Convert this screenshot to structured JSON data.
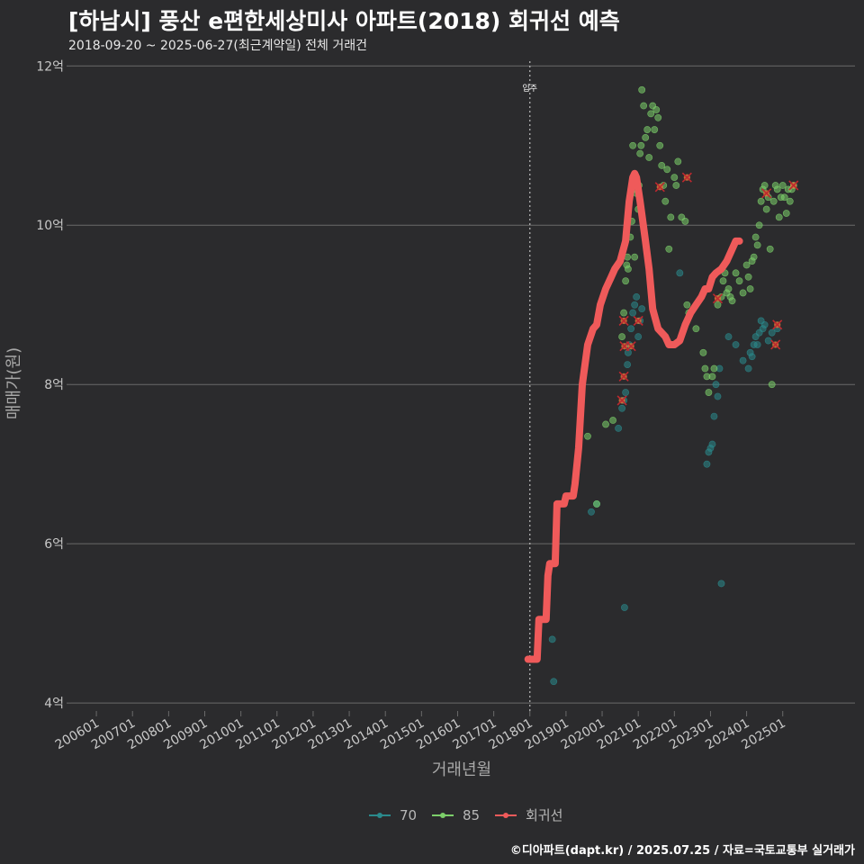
{
  "header": {
    "title": "[하남시] 풍산 e편한세상미사 아파트(2018) 회귀선 예측",
    "subtitle": "2018-09-20 ~ 2025-06-27(최근계약일) 전체 거래건",
    "caption": "©디아파트(dapt.kr) / 2025.07.25 / 자료=국토교통부 실거래가"
  },
  "colors": {
    "background": "#2b2b2d",
    "grid": "#6a6a6a",
    "series70": "#2a8a8c",
    "series85": "#7ccf6a",
    "regression": "#ef5a5a",
    "cross": "#c0282f"
  },
  "chart_data": {
    "type": "scatter",
    "xlabel": "거래년월",
    "ylabel": "매매가(원)",
    "xlim": [
      2005.3,
      2027.0
    ],
    "ylim": [
      3.9,
      12.15
    ],
    "y_ticks": [
      {
        "value": 4,
        "label": "4억"
      },
      {
        "value": 6,
        "label": "6억"
      },
      {
        "value": 8,
        "label": "8억"
      },
      {
        "value": 10,
        "label": "10억"
      },
      {
        "value": 12,
        "label": "12억"
      }
    ],
    "x_ticks": [
      {
        "value": 2006,
        "label": "200601"
      },
      {
        "value": 2007,
        "label": "200701"
      },
      {
        "value": 2008,
        "label": "200801"
      },
      {
        "value": 2009,
        "label": "200901"
      },
      {
        "value": 2010,
        "label": "201001"
      },
      {
        "value": 2011,
        "label": "201101"
      },
      {
        "value": 2012,
        "label": "201201"
      },
      {
        "value": 2013,
        "label": "201301"
      },
      {
        "value": 2014,
        "label": "201401"
      },
      {
        "value": 2015,
        "label": "201501"
      },
      {
        "value": 2016,
        "label": "201601"
      },
      {
        "value": 2017,
        "label": "201701"
      },
      {
        "value": 2018,
        "label": "201801"
      },
      {
        "value": 2019,
        "label": "201901"
      },
      {
        "value": 2020,
        "label": "202001"
      },
      {
        "value": 2021,
        "label": "202101"
      },
      {
        "value": 2022,
        "label": "202201"
      },
      {
        "value": 2023,
        "label": "202301"
      },
      {
        "value": 2024,
        "label": "202401"
      },
      {
        "value": 2025,
        "label": "202501"
      }
    ],
    "move_in": {
      "x": 2018.0,
      "label": "입주"
    },
    "legend": [
      {
        "name": "70",
        "color": "#2a8a8c"
      },
      {
        "name": "85",
        "color": "#7ccf6a"
      },
      {
        "name": "회귀선",
        "color": "#ef5a5a"
      }
    ],
    "series": [
      {
        "name": "70",
        "points": [
          [
            2018.62,
            4.8
          ],
          [
            2018.66,
            4.27
          ],
          [
            2019.7,
            6.4
          ],
          [
            2019.85,
            6.5
          ],
          [
            2020.45,
            7.45
          ],
          [
            2020.55,
            7.7
          ],
          [
            2020.6,
            7.8
          ],
          [
            2020.65,
            7.9
          ],
          [
            2020.7,
            8.25
          ],
          [
            2020.72,
            8.4
          ],
          [
            2020.75,
            8.5
          ],
          [
            2020.8,
            8.7
          ],
          [
            2020.85,
            8.9
          ],
          [
            2020.9,
            9.0
          ],
          [
            2020.95,
            9.1
          ],
          [
            2021.0,
            8.6
          ],
          [
            2021.05,
            8.8
          ],
          [
            2021.1,
            8.95
          ],
          [
            2020.62,
            5.2
          ],
          [
            2022.15,
            9.4
          ],
          [
            2022.9,
            7.0
          ],
          [
            2022.95,
            7.15
          ],
          [
            2023.0,
            7.2
          ],
          [
            2023.05,
            7.25
          ],
          [
            2023.1,
            7.6
          ],
          [
            2023.15,
            8.0
          ],
          [
            2023.2,
            7.85
          ],
          [
            2023.25,
            8.2
          ],
          [
            2023.3,
            5.5
          ],
          [
            2023.5,
            8.6
          ],
          [
            2023.7,
            8.5
          ],
          [
            2023.9,
            8.3
          ],
          [
            2024.05,
            8.2
          ],
          [
            2024.1,
            8.4
          ],
          [
            2024.15,
            8.35
          ],
          [
            2024.2,
            8.5
          ],
          [
            2024.25,
            8.6
          ],
          [
            2024.3,
            8.5
          ],
          [
            2024.35,
            8.65
          ],
          [
            2024.4,
            8.8
          ],
          [
            2024.45,
            8.7
          ],
          [
            2024.5,
            8.75
          ],
          [
            2024.6,
            8.55
          ],
          [
            2024.7,
            8.65
          ],
          [
            2024.85,
            8.7
          ]
        ]
      },
      {
        "name": "85",
        "points": [
          [
            2019.6,
            7.35
          ],
          [
            2019.85,
            6.5
          ],
          [
            2020.1,
            7.5
          ],
          [
            2020.3,
            7.55
          ],
          [
            2020.55,
            8.6
          ],
          [
            2020.6,
            8.9
          ],
          [
            2020.65,
            9.3
          ],
          [
            2020.68,
            9.5
          ],
          [
            2020.7,
            9.6
          ],
          [
            2020.72,
            9.45
          ],
          [
            2020.78,
            9.85
          ],
          [
            2020.82,
            10.05
          ],
          [
            2020.85,
            11.0
          ],
          [
            2020.88,
            10.45
          ],
          [
            2020.9,
            9.6
          ],
          [
            2020.95,
            10.4
          ],
          [
            2021.0,
            10.2
          ],
          [
            2021.02,
            10.5
          ],
          [
            2021.05,
            10.9
          ],
          [
            2021.08,
            11.0
          ],
          [
            2021.1,
            11.7
          ],
          [
            2021.15,
            11.5
          ],
          [
            2021.2,
            11.1
          ],
          [
            2021.25,
            11.2
          ],
          [
            2021.3,
            10.85
          ],
          [
            2021.35,
            11.4
          ],
          [
            2021.4,
            11.5
          ],
          [
            2021.45,
            11.2
          ],
          [
            2021.5,
            11.45
          ],
          [
            2021.55,
            11.35
          ],
          [
            2021.6,
            11.0
          ],
          [
            2021.65,
            10.75
          ],
          [
            2021.7,
            10.5
          ],
          [
            2021.75,
            10.3
          ],
          [
            2021.8,
            10.7
          ],
          [
            2021.85,
            9.7
          ],
          [
            2021.9,
            10.1
          ],
          [
            2022.0,
            10.6
          ],
          [
            2022.05,
            10.5
          ],
          [
            2022.1,
            10.8
          ],
          [
            2022.2,
            10.1
          ],
          [
            2022.3,
            10.05
          ],
          [
            2022.35,
            9.0
          ],
          [
            2022.4,
            8.9
          ],
          [
            2022.6,
            8.7
          ],
          [
            2022.8,
            8.4
          ],
          [
            2022.85,
            8.2
          ],
          [
            2022.9,
            8.1
          ],
          [
            2022.95,
            7.9
          ],
          [
            2023.05,
            8.1
          ],
          [
            2023.1,
            8.2
          ],
          [
            2023.2,
            9.0
          ],
          [
            2023.3,
            9.1
          ],
          [
            2023.35,
            9.3
          ],
          [
            2023.4,
            9.4
          ],
          [
            2023.45,
            9.15
          ],
          [
            2023.5,
            9.2
          ],
          [
            2023.55,
            9.1
          ],
          [
            2023.6,
            9.05
          ],
          [
            2023.7,
            9.4
          ],
          [
            2023.8,
            9.3
          ],
          [
            2023.9,
            9.15
          ],
          [
            2024.0,
            9.5
          ],
          [
            2024.05,
            9.35
          ],
          [
            2024.1,
            9.2
          ],
          [
            2024.15,
            9.55
          ],
          [
            2024.2,
            9.6
          ],
          [
            2024.25,
            9.85
          ],
          [
            2024.3,
            9.75
          ],
          [
            2024.35,
            10.0
          ],
          [
            2024.4,
            10.3
          ],
          [
            2024.45,
            10.45
          ],
          [
            2024.5,
            10.5
          ],
          [
            2024.55,
            10.2
          ],
          [
            2024.6,
            10.35
          ],
          [
            2024.65,
            9.7
          ],
          [
            2024.7,
            8.0
          ],
          [
            2024.75,
            10.3
          ],
          [
            2024.8,
            10.5
          ],
          [
            2024.85,
            10.45
          ],
          [
            2024.9,
            10.1
          ],
          [
            2024.95,
            10.35
          ],
          [
            2025.0,
            10.5
          ],
          [
            2025.05,
            10.35
          ],
          [
            2025.1,
            10.15
          ],
          [
            2025.15,
            10.45
          ],
          [
            2025.2,
            10.3
          ],
          [
            2025.25,
            10.45
          ],
          [
            2025.3,
            10.5
          ]
        ]
      },
      {
        "name": "회귀선",
        "points": [
          [
            2017.95,
            4.55
          ],
          [
            2018.2,
            4.55
          ],
          [
            2018.25,
            5.05
          ],
          [
            2018.45,
            5.05
          ],
          [
            2018.5,
            5.6
          ],
          [
            2018.55,
            5.75
          ],
          [
            2018.7,
            5.75
          ],
          [
            2018.75,
            6.5
          ],
          [
            2018.95,
            6.5
          ],
          [
            2019.0,
            6.6
          ],
          [
            2019.2,
            6.6
          ],
          [
            2019.25,
            6.75
          ],
          [
            2019.35,
            7.2
          ],
          [
            2019.45,
            8.0
          ],
          [
            2019.6,
            8.5
          ],
          [
            2019.75,
            8.7
          ],
          [
            2019.85,
            8.75
          ],
          [
            2019.95,
            9.0
          ],
          [
            2020.1,
            9.2
          ],
          [
            2020.25,
            9.35
          ],
          [
            2020.35,
            9.45
          ],
          [
            2020.5,
            9.55
          ],
          [
            2020.65,
            9.8
          ],
          [
            2020.75,
            10.3
          ],
          [
            2020.85,
            10.6
          ],
          [
            2020.9,
            10.65
          ],
          [
            2020.95,
            10.6
          ],
          [
            2021.05,
            10.3
          ],
          [
            2021.2,
            9.8
          ],
          [
            2021.3,
            9.45
          ],
          [
            2021.4,
            8.95
          ],
          [
            2021.55,
            8.7
          ],
          [
            2021.65,
            8.65
          ],
          [
            2021.75,
            8.6
          ],
          [
            2021.85,
            8.5
          ],
          [
            2022.0,
            8.5
          ],
          [
            2022.15,
            8.55
          ],
          [
            2022.3,
            8.75
          ],
          [
            2022.45,
            8.9
          ],
          [
            2022.6,
            9.0
          ],
          [
            2022.75,
            9.1
          ],
          [
            2022.85,
            9.2
          ],
          [
            2022.95,
            9.2
          ],
          [
            2023.05,
            9.35
          ],
          [
            2023.15,
            9.4
          ],
          [
            2023.3,
            9.45
          ],
          [
            2023.45,
            9.55
          ],
          [
            2023.6,
            9.7
          ],
          [
            2023.7,
            9.8
          ],
          [
            2023.8,
            9.8
          ]
        ]
      }
    ],
    "crossed_points": [
      [
        2020.55,
        7.8
      ],
      [
        2020.6,
        8.1
      ],
      [
        2020.62,
        8.48
      ],
      [
        2020.8,
        8.48
      ],
      [
        2021.0,
        8.8
      ],
      [
        2020.6,
        8.8
      ],
      [
        2021.6,
        10.48
      ],
      [
        2022.35,
        10.6
      ],
      [
        2023.2,
        9.08
      ],
      [
        2024.55,
        10.4
      ],
      [
        2024.8,
        8.5
      ],
      [
        2024.85,
        8.75
      ],
      [
        2025.3,
        10.5
      ]
    ]
  }
}
